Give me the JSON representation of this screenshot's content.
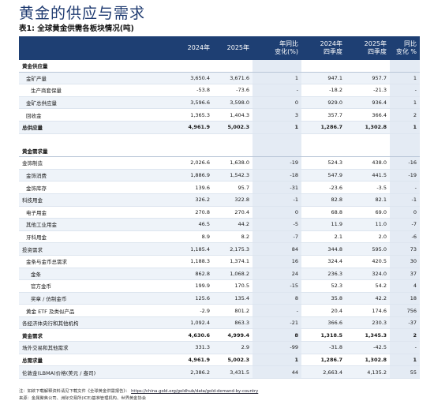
{
  "title": "黄金的供应与需求",
  "subtitle": "表1: 全球黄金供需各板块情况(吨)",
  "table": {
    "headers": [
      "",
      "2024年",
      "2025年",
      "年同比\n变化(%)",
      "2024年\n四季度",
      "2025年\n四季度",
      "同比\n变化 %"
    ],
    "rows": [
      {
        "type": "hdr",
        "cells": [
          "黄金供应量",
          "",
          "",
          "",
          "",
          "",
          ""
        ]
      },
      {
        "type": "alt",
        "indent": 1,
        "cells": [
          "金矿产量",
          "3,650.4",
          "3,671.6",
          "1",
          "947.1",
          "957.7",
          "1"
        ]
      },
      {
        "type": "norm",
        "indent": 2,
        "cells": [
          "生产商套保量",
          "-53.8",
          "-73.6",
          "-",
          "-18.2",
          "-21.3",
          "-"
        ]
      },
      {
        "type": "alt",
        "indent": 1,
        "cells": [
          "金矿总供应量",
          "3,596.6",
          "3,598.0",
          "0",
          "929.0",
          "936.4",
          "1"
        ]
      },
      {
        "type": "norm",
        "indent": 1,
        "cells": [
          "回收金",
          "1,365.3",
          "1,404.3",
          "3",
          "357.7",
          "366.4",
          "2"
        ]
      },
      {
        "type": "alt bold",
        "indent": 0,
        "cells": [
          "总供应量",
          "4,961.9",
          "5,002.3",
          "1",
          "1,286.7",
          "1,302.8",
          "1"
        ]
      },
      {
        "type": "gap",
        "cells": [
          "",
          "",
          "",
          "",
          "",
          "",
          ""
        ]
      },
      {
        "type": "hdr",
        "cells": [
          "黄金需求量",
          "",
          "",
          "",
          "",
          "",
          ""
        ]
      },
      {
        "type": "norm",
        "indent": 0,
        "cells": [
          "金饰制造",
          "2,026.6",
          "1,638.0",
          "-19",
          "524.3",
          "438.0",
          "-16"
        ]
      },
      {
        "type": "alt",
        "indent": 1,
        "cells": [
          "金饰消费",
          "1,886.9",
          "1,542.3",
          "-18",
          "547.9",
          "441.5",
          "-19"
        ]
      },
      {
        "type": "norm",
        "indent": 1,
        "cells": [
          "金饰库存",
          "139.6",
          "95.7",
          "-31",
          "-23.6",
          "-3.5",
          "-"
        ]
      },
      {
        "type": "alt",
        "indent": 0,
        "cells": [
          "科技用金",
          "326.2",
          "322.8",
          "-1",
          "82.8",
          "82.1",
          "-1"
        ]
      },
      {
        "type": "norm",
        "indent": 1,
        "cells": [
          "电子用金",
          "270.8",
          "270.4",
          "0",
          "68.8",
          "69.0",
          "0"
        ]
      },
      {
        "type": "alt",
        "indent": 1,
        "cells": [
          "其他工业用金",
          "46.5",
          "44.2",
          "-5",
          "11.9",
          "11.0",
          "-7"
        ]
      },
      {
        "type": "norm",
        "indent": 1,
        "cells": [
          "牙科用金",
          "8.9",
          "8.2",
          "-7",
          "2.1",
          "2.0",
          "-6"
        ]
      },
      {
        "type": "alt",
        "indent": 0,
        "cells": [
          "投资需求",
          "1,185.4",
          "2,175.3",
          "84",
          "344.8",
          "595.0",
          "73"
        ]
      },
      {
        "type": "norm",
        "indent": 1,
        "cells": [
          "金条与金币总需求",
          "1,188.3",
          "1,374.1",
          "16",
          "324.4",
          "420.5",
          "30"
        ]
      },
      {
        "type": "alt",
        "indent": 2,
        "cells": [
          "金条",
          "862.8",
          "1,068.2",
          "24",
          "236.3",
          "324.0",
          "37"
        ]
      },
      {
        "type": "norm",
        "indent": 2,
        "cells": [
          "官方金币",
          "199.9",
          "170.5",
          "-15",
          "52.3",
          "54.2",
          "4"
        ]
      },
      {
        "type": "alt",
        "indent": 2,
        "cells": [
          "奖章 / 仿制金币",
          "125.6",
          "135.4",
          "8",
          "35.8",
          "42.2",
          "18"
        ]
      },
      {
        "type": "norm",
        "indent": 1,
        "cells": [
          "黄金 ETF 及类似产品",
          "-2.9",
          "801.2",
          "-",
          "20.4",
          "174.6",
          "756"
        ]
      },
      {
        "type": "alt",
        "indent": 0,
        "cells": [
          "各经济体央行和其他机构",
          "1,092.4",
          "863.3",
          "-21",
          "366.6",
          "230.3",
          "-37"
        ]
      },
      {
        "type": "norm bold",
        "indent": 0,
        "cells": [
          "黄金需求",
          "4,630.6",
          "4,999.4",
          "8",
          "1,318.5",
          "1,345.3",
          "2"
        ]
      },
      {
        "type": "alt",
        "indent": 0,
        "cells": [
          "场外交易和其他需求",
          "331.3",
          "2.9",
          "-99",
          "-31.8",
          "-42.5",
          "-"
        ]
      },
      {
        "type": "norm bold",
        "indent": 0,
        "cells": [
          "总需求量",
          "4,961.9",
          "5,002.3",
          "1",
          "1,286.7",
          "1,302.8",
          "1"
        ]
      },
      {
        "type": "alt",
        "indent": 0,
        "cells": [
          "伦敦金(LBMA)价格(美元 / 盎司)",
          "2,386.2",
          "3,431.5",
          "44",
          "2,663.4",
          "4,135.2",
          "55"
        ]
      }
    ]
  },
  "notes": {
    "line1_prefix": "注：如欲下载解释资料请见下载文件《全球黄金供需报告》：",
    "line1_link": "https://china.gold.org/goldhub/data/gold-demand-by-country",
    "line2": "来源：金属聚焦公司、洲际交易所(ICE)基准管理机构、世界黄金协会"
  }
}
